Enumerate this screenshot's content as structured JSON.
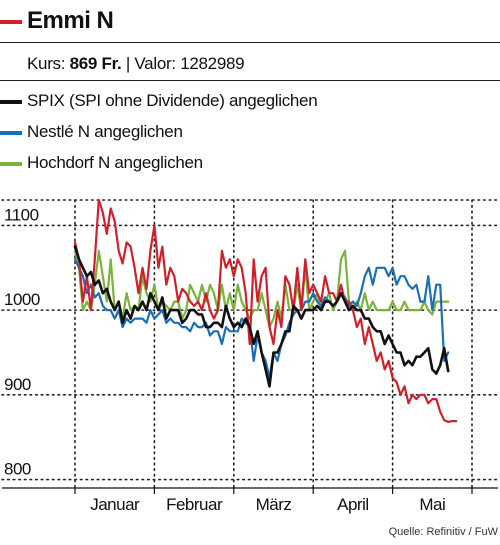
{
  "header": {
    "title": "Emmi N",
    "kurs_label": "Kurs:",
    "kurs_value": "869 Fr.",
    "separator": "|",
    "valor_label": "Valor:",
    "valor_value": "1282989",
    "title_color": "#d0202a"
  },
  "chart_data": {
    "type": "line",
    "title": "Emmi N",
    "ylim": [
      790,
      1130
    ],
    "y_ticks": [
      800,
      900,
      1000,
      1100
    ],
    "y_tick_labels": [
      "800",
      "900",
      "1000",
      "1100"
    ],
    "x_range": [
      0,
      30
    ],
    "x_ticks": [
      0,
      6,
      12,
      18,
      24,
      30
    ],
    "x_labels": [
      {
        "label": "Januar",
        "pos": 3
      },
      {
        "label": "Februar",
        "pos": 9
      },
      {
        "label": "März",
        "pos": 15
      },
      {
        "label": "April",
        "pos": 21
      },
      {
        "label": "Mai",
        "pos": 27
      }
    ],
    "grid": "dotted",
    "legend_position": "top",
    "series": [
      {
        "name": "Emmi N",
        "color": "#d0202a",
        "x": [
          0,
          0.3,
          0.6,
          0.9,
          1.2,
          1.5,
          1.8,
          2.1,
          2.4,
          2.7,
          3.0,
          3.3,
          3.6,
          3.9,
          4.2,
          4.5,
          4.8,
          5.1,
          5.4,
          5.7,
          6.0,
          6.3,
          6.6,
          6.9,
          7.2,
          7.5,
          7.8,
          8.1,
          8.4,
          8.7,
          9.0,
          9.3,
          9.6,
          9.9,
          10.2,
          10.5,
          10.8,
          11.1,
          11.4,
          11.7,
          12.0,
          12.3,
          12.6,
          12.9,
          13.2,
          13.5,
          13.8,
          14.1,
          14.4,
          14.7,
          15.0,
          15.3,
          15.6,
          15.9,
          16.2,
          16.5,
          16.8,
          17.1,
          17.4,
          17.7,
          18.0,
          18.3,
          18.6,
          18.9,
          19.2,
          19.5,
          19.8,
          20.1,
          20.4,
          20.7,
          21.0,
          21.3,
          21.6,
          21.9,
          22.2,
          22.5,
          22.8,
          23.1,
          23.4,
          23.7,
          24.0,
          24.3,
          24.6,
          24.9,
          25.2,
          25.5,
          25.8,
          26.1,
          26.4,
          26.7,
          27.0,
          27.3,
          27.6,
          27.9,
          28.2,
          28.5,
          28.8
        ],
        "y": [
          1080,
          1060,
          1010,
          1040,
          1000,
          1060,
          1130,
          1115,
          1090,
          1120,
          1105,
          1070,
          1055,
          1080,
          1075,
          1050,
          1020,
          1050,
          1025,
          1070,
          1100,
          1050,
          1075,
          1030,
          1050,
          1040,
          1010,
          1025,
          1020,
          1010,
          1005,
          1010,
          1000,
          1020,
          1000,
          990,
          1000,
          1070,
          1050,
          1060,
          1040,
          1060,
          1050,
          1020,
          960,
          1060,
          1010,
          1040,
          1050,
          980,
          960,
          1000,
          980,
          1040,
          1030,
          1000,
          1050,
          1000,
          1060,
          1020,
          1030,
          1020,
          1010,
          1040,
          1020,
          1020,
          1010,
          1030,
          1010,
          1010,
          1000,
          980,
          990,
          960,
          980,
          960,
          940,
          950,
          930,
          940,
          920,
          915,
          900,
          910,
          890,
          900,
          895,
          900,
          900,
          890,
          895,
          895,
          880,
          870,
          868,
          869,
          869
        ]
      },
      {
        "name": "SPIX (SPI ohne Dividende) angeglichen",
        "color": "#111111",
        "x": [
          0,
          0.3,
          0.6,
          0.9,
          1.2,
          1.5,
          1.8,
          2.1,
          2.4,
          2.7,
          3.0,
          3.3,
          3.6,
          3.9,
          4.2,
          4.5,
          4.8,
          5.1,
          5.4,
          5.7,
          6.0,
          6.3,
          6.6,
          6.9,
          7.2,
          7.5,
          7.8,
          8.1,
          8.4,
          8.7,
          9.0,
          9.3,
          9.6,
          9.9,
          10.2,
          10.5,
          10.8,
          11.1,
          11.4,
          11.7,
          12.0,
          12.3,
          12.6,
          12.9,
          13.2,
          13.5,
          13.8,
          14.1,
          14.4,
          14.7,
          15.0,
          15.3,
          15.6,
          15.9,
          16.2,
          16.5,
          16.8,
          17.1,
          17.4,
          17.7,
          18.0,
          18.3,
          18.6,
          18.9,
          19.2,
          19.5,
          19.8,
          20.1,
          20.4,
          20.7,
          21.0,
          21.3,
          21.6,
          21.9,
          22.2,
          22.5,
          22.8,
          23.1,
          23.4,
          23.7,
          24.0,
          24.3,
          24.6,
          24.9,
          25.2,
          25.5,
          25.8,
          26.1,
          26.4,
          26.7,
          27.0,
          27.3,
          27.6,
          27.9,
          28.2
        ],
        "y": [
          1075,
          1060,
          1050,
          1040,
          1045,
          1030,
          1035,
          1020,
          1025,
          1010,
          1000,
          1010,
          985,
          1000,
          990,
          1005,
          1000,
          1010,
          1000,
          1020,
          1010,
          1000,
          1015,
          990,
          1000,
          1000,
          1000,
          985,
          990,
          1000,
          1000,
          995,
          995,
          980,
          980,
          985,
          985,
          980,
          1005,
          990,
          980,
          985,
          980,
          990,
          980,
          960,
          975,
          950,
          930,
          910,
          950,
          950,
          960,
          975,
          975,
          1005,
          1000,
          990,
          1000,
          1000,
          1000,
          1005,
          1000,
          1010,
          1010,
          1005,
          1010,
          1020,
          1010,
          1000,
          1005,
          1000,
          1000,
          990,
          990,
          980,
          975,
          975,
          960,
          970,
          960,
          950,
          950,
          935,
          940,
          935,
          945,
          945,
          950,
          955,
          930,
          925,
          935,
          955,
          928
        ]
      },
      {
        "name": "Nestlé N angeglichen",
        "color": "#1a6fb5",
        "x": [
          0,
          0.3,
          0.6,
          0.9,
          1.2,
          1.5,
          1.8,
          2.1,
          2.4,
          2.7,
          3.0,
          3.3,
          3.6,
          3.9,
          4.2,
          4.5,
          4.8,
          5.1,
          5.4,
          5.7,
          6.0,
          6.3,
          6.6,
          6.9,
          7.2,
          7.5,
          7.8,
          8.1,
          8.4,
          8.7,
          9.0,
          9.3,
          9.6,
          9.9,
          10.2,
          10.5,
          10.8,
          11.1,
          11.4,
          11.7,
          12.0,
          12.3,
          12.6,
          12.9,
          13.2,
          13.5,
          13.8,
          14.1,
          14.4,
          14.7,
          15.0,
          15.3,
          15.6,
          15.9,
          16.2,
          16.5,
          16.8,
          17.1,
          17.4,
          17.7,
          18.0,
          18.3,
          18.6,
          18.9,
          19.2,
          19.5,
          19.8,
          20.1,
          20.4,
          20.7,
          21.0,
          21.3,
          21.6,
          21.9,
          22.2,
          22.5,
          22.8,
          23.1,
          23.4,
          23.7,
          24.0,
          24.3,
          24.6,
          24.9,
          25.2,
          25.5,
          25.8,
          26.1,
          26.4,
          26.7,
          27.0,
          27.3,
          27.6,
          27.9,
          28.2
        ],
        "y": [
          1060,
          1050,
          1040,
          1020,
          1030,
          1015,
          1020,
          1005,
          1000,
          1000,
          990,
          1000,
          980,
          990,
          985,
          990,
          990,
          990,
          985,
          1000,
          990,
          995,
          1000,
          985,
          990,
          985,
          985,
          980,
          980,
          975,
          985,
          980,
          980,
          985,
          970,
          975,
          975,
          960,
          980,
          975,
          975,
          975,
          990,
          985,
          980,
          940,
          970,
          950,
          940,
          920,
          950,
          940,
          960,
          970,
          985,
          995,
          1000,
          1000,
          1010,
          1010,
          1020,
          1010,
          1005,
          1015,
          1010,
          1005,
          1010,
          1020,
          1015,
          1005,
          1010,
          1005,
          1020,
          1040,
          1050,
          1030,
          1050,
          1050,
          1050,
          1040,
          1050,
          1030,
          1040,
          1040,
          1030,
          1025,
          1030,
          1010,
          1010,
          1040,
          1000,
          1030,
          1030,
          940,
          950
        ]
      },
      {
        "name": "Hochdorf N angeglichen",
        "color": "#7bb43c",
        "x": [
          0,
          0.3,
          0.6,
          0.9,
          1.2,
          1.5,
          1.8,
          2.1,
          2.4,
          2.7,
          3.0,
          3.3,
          3.6,
          3.9,
          4.2,
          4.5,
          4.8,
          5.1,
          5.4,
          5.7,
          6.0,
          6.3,
          6.6,
          6.9,
          7.2,
          7.5,
          7.8,
          8.1,
          8.4,
          8.7,
          9.0,
          9.3,
          9.6,
          9.9,
          10.2,
          10.5,
          10.8,
          11.1,
          11.4,
          11.7,
          12.0,
          12.3,
          12.6,
          12.9,
          13.2,
          13.5,
          13.8,
          14.1,
          14.4,
          14.7,
          15.0,
          15.3,
          15.6,
          15.9,
          16.2,
          16.5,
          16.8,
          17.1,
          17.4,
          17.7,
          18.0,
          18.3,
          18.6,
          18.9,
          19.2,
          19.5,
          19.8,
          20.1,
          20.4,
          20.7,
          21.0,
          21.3,
          21.6,
          21.9,
          22.2,
          22.5,
          22.8,
          23.1,
          23.4,
          23.7,
          24.0,
          24.3,
          24.6,
          24.9,
          25.2,
          25.5,
          25.8,
          26.1,
          26.4,
          26.7,
          27.0,
          27.3,
          27.6,
          27.9,
          28.2
        ],
        "y": [
          1070,
          1050,
          1000,
          1010,
          1000,
          1030,
          1070,
          1040,
          1010,
          1060,
          1000,
          1010,
          990,
          1020,
          1000,
          1005,
          1000,
          1040,
          1020,
          1010,
          1030,
          1000,
          1010,
          1005,
          1000,
          1010,
          1010,
          990,
          1000,
          1030,
          1020,
          1010,
          1030,
          1010,
          1030,
          1020,
          1000,
          1030,
          1000,
          1020,
          1000,
          1030,
          1010,
          1000,
          990,
          1000,
          1000,
          1020,
          1000,
          980,
          990,
          1010,
          990,
          1030,
          1000,
          1000,
          1030,
          1000,
          1050,
          1000,
          1010,
          1020,
          1000,
          1010,
          1020,
          1000,
          1010,
          1060,
          1070,
          1010,
          1000,
          1010,
          1000,
          1020,
          1000,
          1010,
          1000,
          1000,
          1000,
          1000,
          1010,
          1000,
          1000,
          1010,
          1000,
          1000,
          1000,
          1000,
          1010,
          1000,
          995,
          1010,
          1010,
          1010,
          1010
        ]
      }
    ]
  },
  "source": "Quelle: Refinitiv / FuW"
}
